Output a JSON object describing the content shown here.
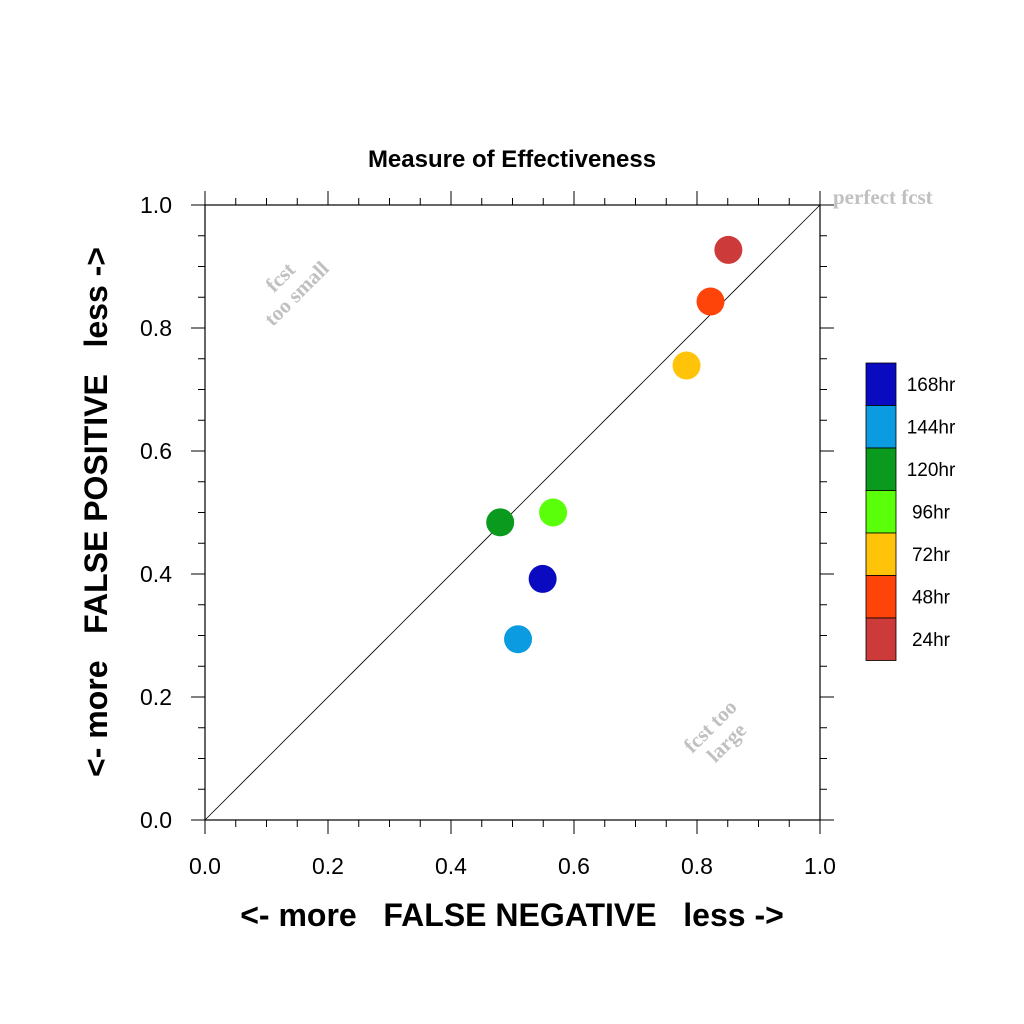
{
  "chart_data": {
    "type": "scatter",
    "title": "Measure of Effectiveness",
    "xlabel": "<- more   FALSE NEGATIVE   less ->",
    "ylabel": "<- more   FALSE POSITIVE   less ->",
    "xlim": [
      0.0,
      1.0
    ],
    "ylim": [
      0.0,
      1.0
    ],
    "xticks": [
      "0.0",
      "0.2",
      "0.4",
      "0.6",
      "0.8",
      "1.0"
    ],
    "yticks": [
      "0.0",
      "0.2",
      "0.4",
      "0.6",
      "0.8",
      "1.0"
    ],
    "diagonal_reference_line": true,
    "annotations": {
      "perfect": "perfect fcst",
      "too_small_line1": "fcst",
      "too_small_line2": "too small",
      "too_large_line1": "fcst too",
      "too_large_line2": "large"
    },
    "legend_position": "right",
    "series": [
      {
        "name": "168hr",
        "color": "#0a0ac0",
        "x": 0.549,
        "y": 0.392
      },
      {
        "name": "144hr",
        "color": "#0a9be0",
        "x": 0.509,
        "y": 0.294
      },
      {
        "name": "120hr",
        "color": "#0a9a1e",
        "x": 0.48,
        "y": 0.484
      },
      {
        "name": "96hr",
        "color": "#5aff0a",
        "x": 0.566,
        "y": 0.5
      },
      {
        "name": "72hr",
        "color": "#ffc30a",
        "x": 0.783,
        "y": 0.739
      },
      {
        "name": "48hr",
        "color": "#ff440a",
        "x": 0.822,
        "y": 0.843
      },
      {
        "name": "24hr",
        "color": "#cc3a3a",
        "x": 0.851,
        "y": 0.927
      }
    ]
  }
}
